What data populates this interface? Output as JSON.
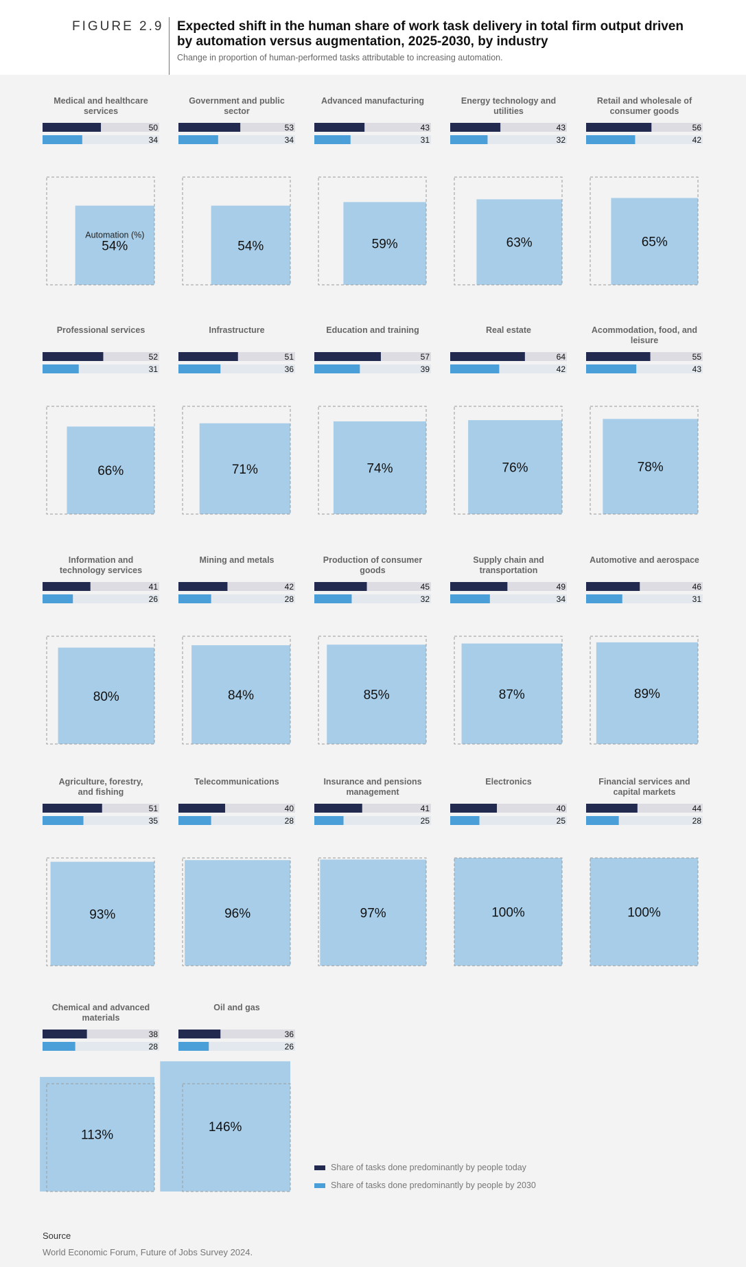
{
  "header": {
    "figure_label": "FIGURE 2.9",
    "title": "Expected shift in the human share of work task delivery in total firm output driven by automation versus augmentation, 2025-2030, by industry",
    "subtitle": "Change in proportion of human-performed tasks attributable to increasing automation."
  },
  "legend": {
    "today": "Share of tasks done predominantly by people today",
    "by2030": "Share of tasks done predominantly by people by 2030"
  },
  "source": {
    "title": "Source",
    "text": "World Economic Forum, Future of Jobs Survey 2024."
  },
  "colors": {
    "today": "#222a50",
    "by2030": "#4a9fd8",
    "track_today": "#dcdce2",
    "track_2030": "#e2e8ee",
    "square_fill": "#a8cde8",
    "square_border": "#9a9a9a",
    "background": "#f3f3f3"
  },
  "chart_data": {
    "type": "bar",
    "series": [
      {
        "name": "Share of tasks done predominantly by people today",
        "key": "today"
      },
      {
        "name": "Share of tasks done predominantly by people by 2030",
        "key": "by2030"
      }
    ],
    "automation_label": "Automation (%)",
    "percent_suffix": "%",
    "industries": [
      {
        "name": "Medical and healthcare services",
        "today": 50,
        "by2030": 34,
        "automation_pct": 54
      },
      {
        "name": "Government and public sector",
        "today": 53,
        "by2030": 34,
        "automation_pct": 54
      },
      {
        "name": "Advanced manufacturing",
        "today": 43,
        "by2030": 31,
        "automation_pct": 59
      },
      {
        "name": "Energy technology and utilities",
        "today": 43,
        "by2030": 32,
        "automation_pct": 63
      },
      {
        "name": "Retail and wholesale of consumer goods",
        "today": 56,
        "by2030": 42,
        "automation_pct": 65
      },
      {
        "name": "Professional services",
        "today": 52,
        "by2030": 31,
        "automation_pct": 66
      },
      {
        "name": "Infrastructure",
        "today": 51,
        "by2030": 36,
        "automation_pct": 71
      },
      {
        "name": "Education and training",
        "today": 57,
        "by2030": 39,
        "automation_pct": 74
      },
      {
        "name": "Real estate",
        "today": 64,
        "by2030": 42,
        "automation_pct": 76
      },
      {
        "name": "Acommodation, food, and leisure",
        "today": 55,
        "by2030": 43,
        "automation_pct": 78
      },
      {
        "name": "Information and technology services",
        "today": 41,
        "by2030": 26,
        "automation_pct": 80
      },
      {
        "name": "Mining and metals",
        "today": 42,
        "by2030": 28,
        "automation_pct": 84
      },
      {
        "name": "Production of consumer goods",
        "today": 45,
        "by2030": 32,
        "automation_pct": 85
      },
      {
        "name": "Supply chain and transportation",
        "today": 49,
        "by2030": 34,
        "automation_pct": 87
      },
      {
        "name": "Automotive and aerospace",
        "today": 46,
        "by2030": 31,
        "automation_pct": 89
      },
      {
        "name": "Agriculture, forestry, and fishing",
        "today": 51,
        "by2030": 35,
        "automation_pct": 93
      },
      {
        "name": "Telecommunications",
        "today": 40,
        "by2030": 28,
        "automation_pct": 96
      },
      {
        "name": "Insurance and pensions management",
        "today": 41,
        "by2030": 25,
        "automation_pct": 97
      },
      {
        "name": "Electronics",
        "today": 40,
        "by2030": 25,
        "automation_pct": 100
      },
      {
        "name": "Financial services and capital markets",
        "today": 44,
        "by2030": 28,
        "automation_pct": 100
      },
      {
        "name": "Chemical and advanced materials",
        "today": 38,
        "by2030": 28,
        "automation_pct": 113
      },
      {
        "name": "Oil and gas",
        "today": 36,
        "by2030": 26,
        "automation_pct": 146
      }
    ]
  }
}
